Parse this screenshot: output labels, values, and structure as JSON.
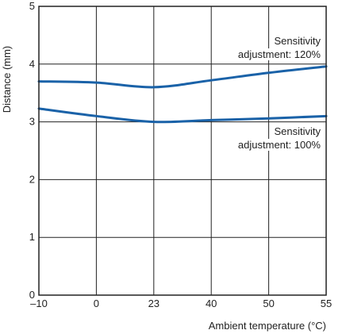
{
  "chart_data": {
    "type": "line",
    "xlabel": "Ambient temperature (°C)",
    "ylabel": "Distance (mm)",
    "x_ticks": [
      "–10",
      "0",
      "23",
      "40",
      "50",
      "55"
    ],
    "y_ticks": [
      "0",
      "1",
      "2",
      "3",
      "4",
      "5"
    ],
    "ylim": [
      0,
      5
    ],
    "grid": true,
    "series": [
      {
        "name": "Sensitivity adjustment: 120%",
        "label_lines": [
          "Sensitivity",
          "adjustment: 120%"
        ],
        "x": [
          "–10",
          "0",
          "23",
          "40",
          "50",
          "55"
        ],
        "values": [
          3.7,
          3.68,
          3.6,
          3.72,
          3.85,
          3.96
        ]
      },
      {
        "name": "Sensitivity adjustment: 100%",
        "label_lines": [
          "Sensitivity",
          "adjustment: 100%"
        ],
        "x": [
          "–10",
          "0",
          "23",
          "40",
          "50",
          "55"
        ],
        "values": [
          3.23,
          3.1,
          3.0,
          3.03,
          3.06,
          3.1
        ]
      }
    ],
    "line_color": "#1a62a8",
    "grid_color": "#222222"
  }
}
